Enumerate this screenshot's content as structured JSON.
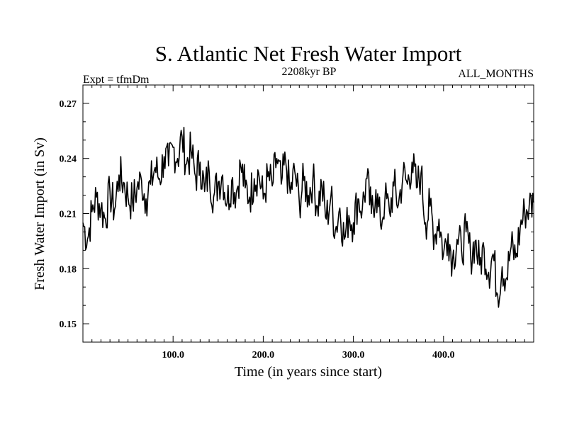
{
  "chart_data": {
    "type": "line",
    "title": "S. Atlantic Net Fresh Water Import",
    "subtitle_left": "Expt = tfmDm",
    "subtitle_center": "2208kyr BP",
    "subtitle_right": "ALL_MONTHS",
    "xlabel": "Time (in years since start)",
    "ylabel": "Fresh Water Import (in Sv)",
    "xlim": [
      0,
      500
    ],
    "ylim": [
      0.14,
      0.28
    ],
    "xticks": [
      100,
      200,
      300,
      400
    ],
    "xtick_labels": [
      "100.0",
      "200.0",
      "300.0",
      "400.0"
    ],
    "yticks": [
      0.15,
      0.18,
      0.21,
      0.24,
      0.27
    ],
    "ytick_labels": [
      "0.15",
      "0.18",
      "0.21",
      "0.24",
      "0.27"
    ],
    "series": [
      {
        "name": "fresh water import",
        "x": [
          0,
          5,
          10,
          15,
          20,
          25,
          30,
          35,
          40,
          45,
          50,
          55,
          60,
          65,
          70,
          75,
          80,
          85,
          90,
          95,
          100,
          105,
          110,
          115,
          120,
          125,
          130,
          135,
          140,
          145,
          150,
          155,
          160,
          165,
          170,
          175,
          180,
          185,
          190,
          195,
          200,
          205,
          210,
          215,
          220,
          225,
          230,
          235,
          240,
          245,
          250,
          255,
          260,
          265,
          270,
          275,
          280,
          285,
          290,
          295,
          300,
          305,
          310,
          315,
          320,
          325,
          330,
          335,
          340,
          345,
          350,
          355,
          360,
          365,
          370,
          375,
          380,
          385,
          390,
          395,
          400,
          405,
          410,
          415,
          420,
          425,
          430,
          435,
          440,
          445,
          450,
          455,
          460,
          465,
          470,
          475,
          480,
          485,
          490,
          495,
          500
        ],
        "y": [
          0.205,
          0.196,
          0.211,
          0.219,
          0.213,
          0.207,
          0.222,
          0.212,
          0.231,
          0.227,
          0.219,
          0.216,
          0.224,
          0.228,
          0.218,
          0.226,
          0.235,
          0.229,
          0.241,
          0.236,
          0.246,
          0.24,
          0.252,
          0.237,
          0.244,
          0.23,
          0.238,
          0.222,
          0.233,
          0.219,
          0.227,
          0.231,
          0.216,
          0.228,
          0.221,
          0.236,
          0.224,
          0.219,
          0.229,
          0.232,
          0.218,
          0.23,
          0.225,
          0.24,
          0.226,
          0.238,
          0.221,
          0.233,
          0.216,
          0.228,
          0.22,
          0.229,
          0.214,
          0.225,
          0.207,
          0.219,
          0.201,
          0.213,
          0.196,
          0.209,
          0.205,
          0.218,
          0.213,
          0.229,
          0.21,
          0.223,
          0.204,
          0.218,
          0.211,
          0.225,
          0.215,
          0.231,
          0.226,
          0.238,
          0.224,
          0.232,
          0.205,
          0.214,
          0.198,
          0.207,
          0.188,
          0.199,
          0.185,
          0.196,
          0.19,
          0.2,
          0.187,
          0.195,
          0.182,
          0.191,
          0.178,
          0.188,
          0.166,
          0.181,
          0.175,
          0.192,
          0.186,
          0.202,
          0.211,
          0.214,
          0.216
        ]
      }
    ]
  }
}
